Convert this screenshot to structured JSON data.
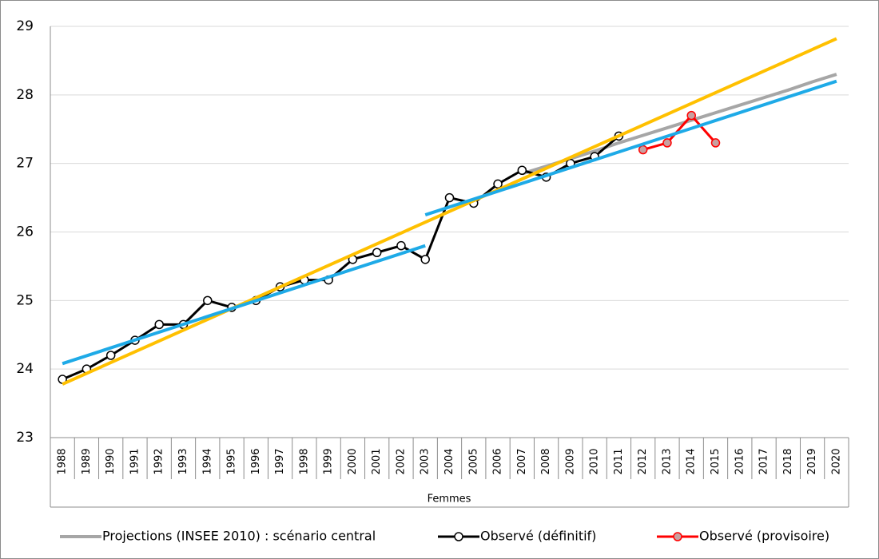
{
  "chart_data": {
    "type": "line",
    "x_label": "Femmes",
    "categories": [
      "1988",
      "1989",
      "1990",
      "1991",
      "1992",
      "1993",
      "1994",
      "1995",
      "1996",
      "1997",
      "1998",
      "1999",
      "2000",
      "2001",
      "2002",
      "2003",
      "2004",
      "2005",
      "2006",
      "2007",
      "2008",
      "2009",
      "2010",
      "2011",
      "2012",
      "2013",
      "2014",
      "2015",
      "2016",
      "2017",
      "2018",
      "2019",
      "2020"
    ],
    "ylim": [
      23,
      29
    ],
    "yticks": [
      23,
      24,
      25,
      26,
      27,
      28,
      29
    ],
    "grid": true,
    "legend": "bottom",
    "series": [
      {
        "name": "Projections (INSEE 2010) : scénario central",
        "color": "#a6a6a6",
        "values": [
          null,
          null,
          null,
          null,
          null,
          null,
          null,
          null,
          null,
          null,
          null,
          null,
          null,
          null,
          null,
          null,
          null,
          null,
          null,
          26.85,
          26.96,
          27.07,
          27.18,
          27.3,
          27.41,
          27.52,
          27.63,
          27.74,
          27.85,
          27.96,
          28.07,
          28.19,
          28.3
        ]
      },
      {
        "name": "Observé (définitif)",
        "color": "#000000",
        "marker_fill": "#ffffff",
        "values": [
          23.85,
          24.0,
          24.2,
          24.42,
          24.65,
          24.65,
          25.0,
          24.9,
          25.0,
          25.2,
          25.3,
          25.3,
          25.6,
          25.7,
          25.8,
          25.6,
          26.5,
          26.42,
          26.7,
          26.9,
          26.8,
          27.0,
          27.1,
          27.4,
          null,
          null,
          null,
          null,
          null,
          null,
          null,
          null,
          null
        ]
      },
      {
        "name": "Observé (provisoire)",
        "color": "#ff0000",
        "marker_fill": "#c8a0a0",
        "values": [
          null,
          null,
          null,
          null,
          null,
          null,
          null,
          null,
          null,
          null,
          null,
          null,
          null,
          null,
          null,
          null,
          null,
          null,
          null,
          null,
          null,
          null,
          null,
          null,
          27.2,
          27.3,
          27.7,
          27.3,
          null,
          null,
          null,
          null,
          null
        ]
      }
    ],
    "trendlines": [
      {
        "color": "#ffc000",
        "from": "1988",
        "to": "2020",
        "values": [
          23.78,
          28.82
        ]
      },
      {
        "color": "#1eaae7",
        "from": "1988",
        "to": "2003",
        "values": [
          24.08,
          25.8
        ]
      },
      {
        "color": "#1eaae7",
        "from": "2003",
        "to": "2020",
        "values": [
          26.25,
          28.2
        ]
      }
    ]
  }
}
